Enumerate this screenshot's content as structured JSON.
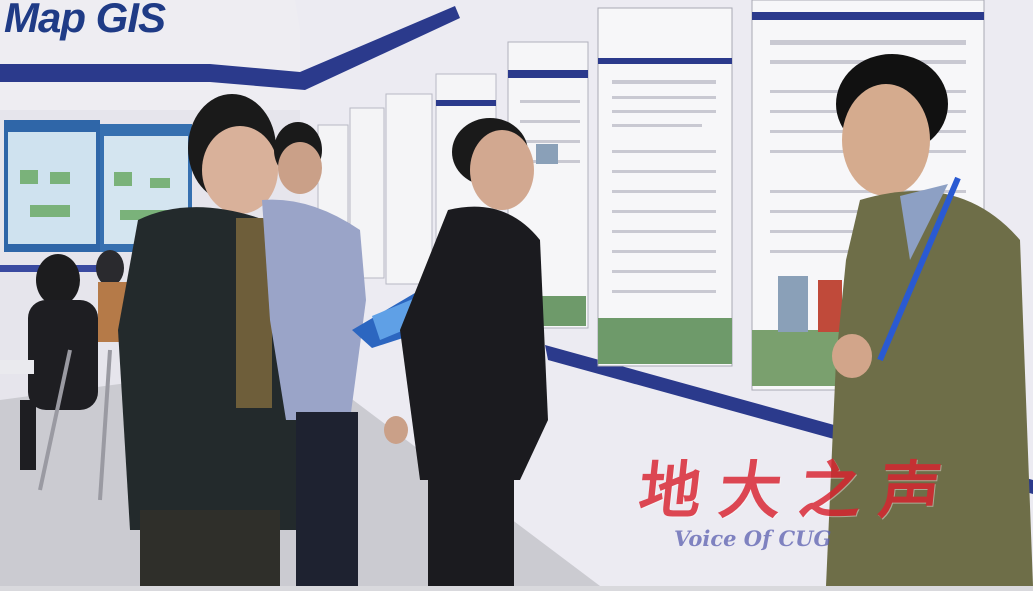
{
  "photo": {
    "subject": "exhibition booth",
    "colors": {
      "wall": "#e8e7ee",
      "band": "#2b3a8c",
      "floor": "#c9c9cf",
      "watermark_red": "#d9232f",
      "watermark_blue": "#5b5fb0"
    }
  },
  "booth_logo": {
    "text": "Map GIS"
  },
  "watermark": {
    "chinese": "地大之声",
    "english": "Voice Of CUG"
  }
}
